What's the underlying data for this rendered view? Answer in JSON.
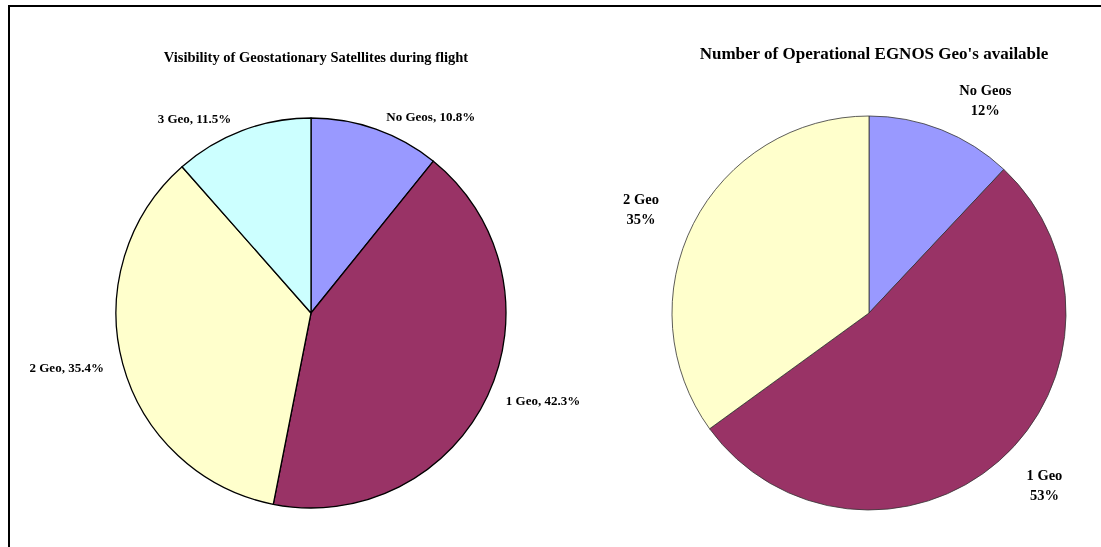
{
  "chart_data": [
    {
      "type": "pie",
      "title": "Visibility of Geostationary Satellites during flight",
      "categories": [
        "No Geos",
        "1 Geo",
        "2 Geo",
        "3 Geo"
      ],
      "values": [
        10.8,
        42.3,
        35.4,
        11.5
      ],
      "colors": [
        "#9999ff",
        "#993366",
        "#ffffcc",
        "#ccffff"
      ],
      "value_labels": [
        "10.8%",
        "42.3%",
        "35.4%",
        "11.5%"
      ]
    },
    {
      "type": "pie",
      "title": "Number of Operational EGNOS Geo's available",
      "categories": [
        "No Geos",
        "1 Geo",
        "2 Geo"
      ],
      "values": [
        12,
        53,
        35
      ],
      "colors": [
        "#9999ff",
        "#993366",
        "#ffffcc"
      ],
      "value_labels": [
        "12%",
        "53%",
        "35%"
      ]
    }
  ]
}
